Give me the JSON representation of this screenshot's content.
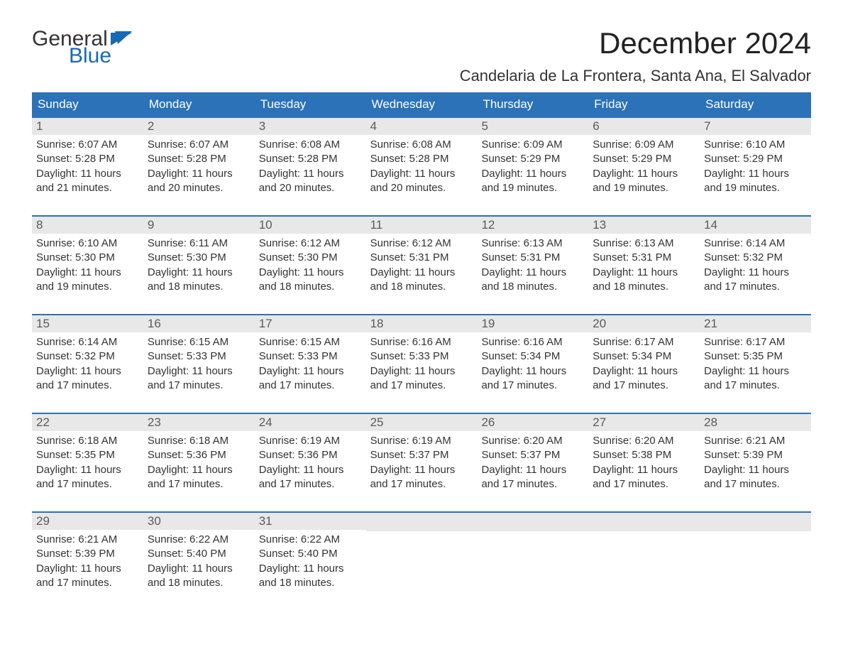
{
  "logo": {
    "general": "General",
    "blue": "Blue"
  },
  "title": "December 2024",
  "location": "Candelaria de La Frontera, Santa Ana, El Salvador",
  "colors": {
    "header_bg": "#2b72b8",
    "header_text": "#ffffff",
    "row_separator": "#2b72b8",
    "daynum_bg": "#e8e8e8",
    "daynum_text": "#5a5a5a",
    "body_text": "#333333",
    "logo_blue": "#1969b5"
  },
  "days_of_week": [
    "Sunday",
    "Monday",
    "Tuesday",
    "Wednesday",
    "Thursday",
    "Friday",
    "Saturday"
  ],
  "weeks": [
    [
      {
        "n": "1",
        "sunrise": "Sunrise: 6:07 AM",
        "sunset": "Sunset: 5:28 PM",
        "d1": "Daylight: 11 hours",
        "d2": "and 21 minutes."
      },
      {
        "n": "2",
        "sunrise": "Sunrise: 6:07 AM",
        "sunset": "Sunset: 5:28 PM",
        "d1": "Daylight: 11 hours",
        "d2": "and 20 minutes."
      },
      {
        "n": "3",
        "sunrise": "Sunrise: 6:08 AM",
        "sunset": "Sunset: 5:28 PM",
        "d1": "Daylight: 11 hours",
        "d2": "and 20 minutes."
      },
      {
        "n": "4",
        "sunrise": "Sunrise: 6:08 AM",
        "sunset": "Sunset: 5:28 PM",
        "d1": "Daylight: 11 hours",
        "d2": "and 20 minutes."
      },
      {
        "n": "5",
        "sunrise": "Sunrise: 6:09 AM",
        "sunset": "Sunset: 5:29 PM",
        "d1": "Daylight: 11 hours",
        "d2": "and 19 minutes."
      },
      {
        "n": "6",
        "sunrise": "Sunrise: 6:09 AM",
        "sunset": "Sunset: 5:29 PM",
        "d1": "Daylight: 11 hours",
        "d2": "and 19 minutes."
      },
      {
        "n": "7",
        "sunrise": "Sunrise: 6:10 AM",
        "sunset": "Sunset: 5:29 PM",
        "d1": "Daylight: 11 hours",
        "d2": "and 19 minutes."
      }
    ],
    [
      {
        "n": "8",
        "sunrise": "Sunrise: 6:10 AM",
        "sunset": "Sunset: 5:30 PM",
        "d1": "Daylight: 11 hours",
        "d2": "and 19 minutes."
      },
      {
        "n": "9",
        "sunrise": "Sunrise: 6:11 AM",
        "sunset": "Sunset: 5:30 PM",
        "d1": "Daylight: 11 hours",
        "d2": "and 18 minutes."
      },
      {
        "n": "10",
        "sunrise": "Sunrise: 6:12 AM",
        "sunset": "Sunset: 5:30 PM",
        "d1": "Daylight: 11 hours",
        "d2": "and 18 minutes."
      },
      {
        "n": "11",
        "sunrise": "Sunrise: 6:12 AM",
        "sunset": "Sunset: 5:31 PM",
        "d1": "Daylight: 11 hours",
        "d2": "and 18 minutes."
      },
      {
        "n": "12",
        "sunrise": "Sunrise: 6:13 AM",
        "sunset": "Sunset: 5:31 PM",
        "d1": "Daylight: 11 hours",
        "d2": "and 18 minutes."
      },
      {
        "n": "13",
        "sunrise": "Sunrise: 6:13 AM",
        "sunset": "Sunset: 5:31 PM",
        "d1": "Daylight: 11 hours",
        "d2": "and 18 minutes."
      },
      {
        "n": "14",
        "sunrise": "Sunrise: 6:14 AM",
        "sunset": "Sunset: 5:32 PM",
        "d1": "Daylight: 11 hours",
        "d2": "and 17 minutes."
      }
    ],
    [
      {
        "n": "15",
        "sunrise": "Sunrise: 6:14 AM",
        "sunset": "Sunset: 5:32 PM",
        "d1": "Daylight: 11 hours",
        "d2": "and 17 minutes."
      },
      {
        "n": "16",
        "sunrise": "Sunrise: 6:15 AM",
        "sunset": "Sunset: 5:33 PM",
        "d1": "Daylight: 11 hours",
        "d2": "and 17 minutes."
      },
      {
        "n": "17",
        "sunrise": "Sunrise: 6:15 AM",
        "sunset": "Sunset: 5:33 PM",
        "d1": "Daylight: 11 hours",
        "d2": "and 17 minutes."
      },
      {
        "n": "18",
        "sunrise": "Sunrise: 6:16 AM",
        "sunset": "Sunset: 5:33 PM",
        "d1": "Daylight: 11 hours",
        "d2": "and 17 minutes."
      },
      {
        "n": "19",
        "sunrise": "Sunrise: 6:16 AM",
        "sunset": "Sunset: 5:34 PM",
        "d1": "Daylight: 11 hours",
        "d2": "and 17 minutes."
      },
      {
        "n": "20",
        "sunrise": "Sunrise: 6:17 AM",
        "sunset": "Sunset: 5:34 PM",
        "d1": "Daylight: 11 hours",
        "d2": "and 17 minutes."
      },
      {
        "n": "21",
        "sunrise": "Sunrise: 6:17 AM",
        "sunset": "Sunset: 5:35 PM",
        "d1": "Daylight: 11 hours",
        "d2": "and 17 minutes."
      }
    ],
    [
      {
        "n": "22",
        "sunrise": "Sunrise: 6:18 AM",
        "sunset": "Sunset: 5:35 PM",
        "d1": "Daylight: 11 hours",
        "d2": "and 17 minutes."
      },
      {
        "n": "23",
        "sunrise": "Sunrise: 6:18 AM",
        "sunset": "Sunset: 5:36 PM",
        "d1": "Daylight: 11 hours",
        "d2": "and 17 minutes."
      },
      {
        "n": "24",
        "sunrise": "Sunrise: 6:19 AM",
        "sunset": "Sunset: 5:36 PM",
        "d1": "Daylight: 11 hours",
        "d2": "and 17 minutes."
      },
      {
        "n": "25",
        "sunrise": "Sunrise: 6:19 AM",
        "sunset": "Sunset: 5:37 PM",
        "d1": "Daylight: 11 hours",
        "d2": "and 17 minutes."
      },
      {
        "n": "26",
        "sunrise": "Sunrise: 6:20 AM",
        "sunset": "Sunset: 5:37 PM",
        "d1": "Daylight: 11 hours",
        "d2": "and 17 minutes."
      },
      {
        "n": "27",
        "sunrise": "Sunrise: 6:20 AM",
        "sunset": "Sunset: 5:38 PM",
        "d1": "Daylight: 11 hours",
        "d2": "and 17 minutes."
      },
      {
        "n": "28",
        "sunrise": "Sunrise: 6:21 AM",
        "sunset": "Sunset: 5:39 PM",
        "d1": "Daylight: 11 hours",
        "d2": "and 17 minutes."
      }
    ],
    [
      {
        "n": "29",
        "sunrise": "Sunrise: 6:21 AM",
        "sunset": "Sunset: 5:39 PM",
        "d1": "Daylight: 11 hours",
        "d2": "and 17 minutes."
      },
      {
        "n": "30",
        "sunrise": "Sunrise: 6:22 AM",
        "sunset": "Sunset: 5:40 PM",
        "d1": "Daylight: 11 hours",
        "d2": "and 18 minutes."
      },
      {
        "n": "31",
        "sunrise": "Sunrise: 6:22 AM",
        "sunset": "Sunset: 5:40 PM",
        "d1": "Daylight: 11 hours",
        "d2": "and 18 minutes."
      },
      {
        "empty": true
      },
      {
        "empty": true
      },
      {
        "empty": true
      },
      {
        "empty": true
      }
    ]
  ]
}
